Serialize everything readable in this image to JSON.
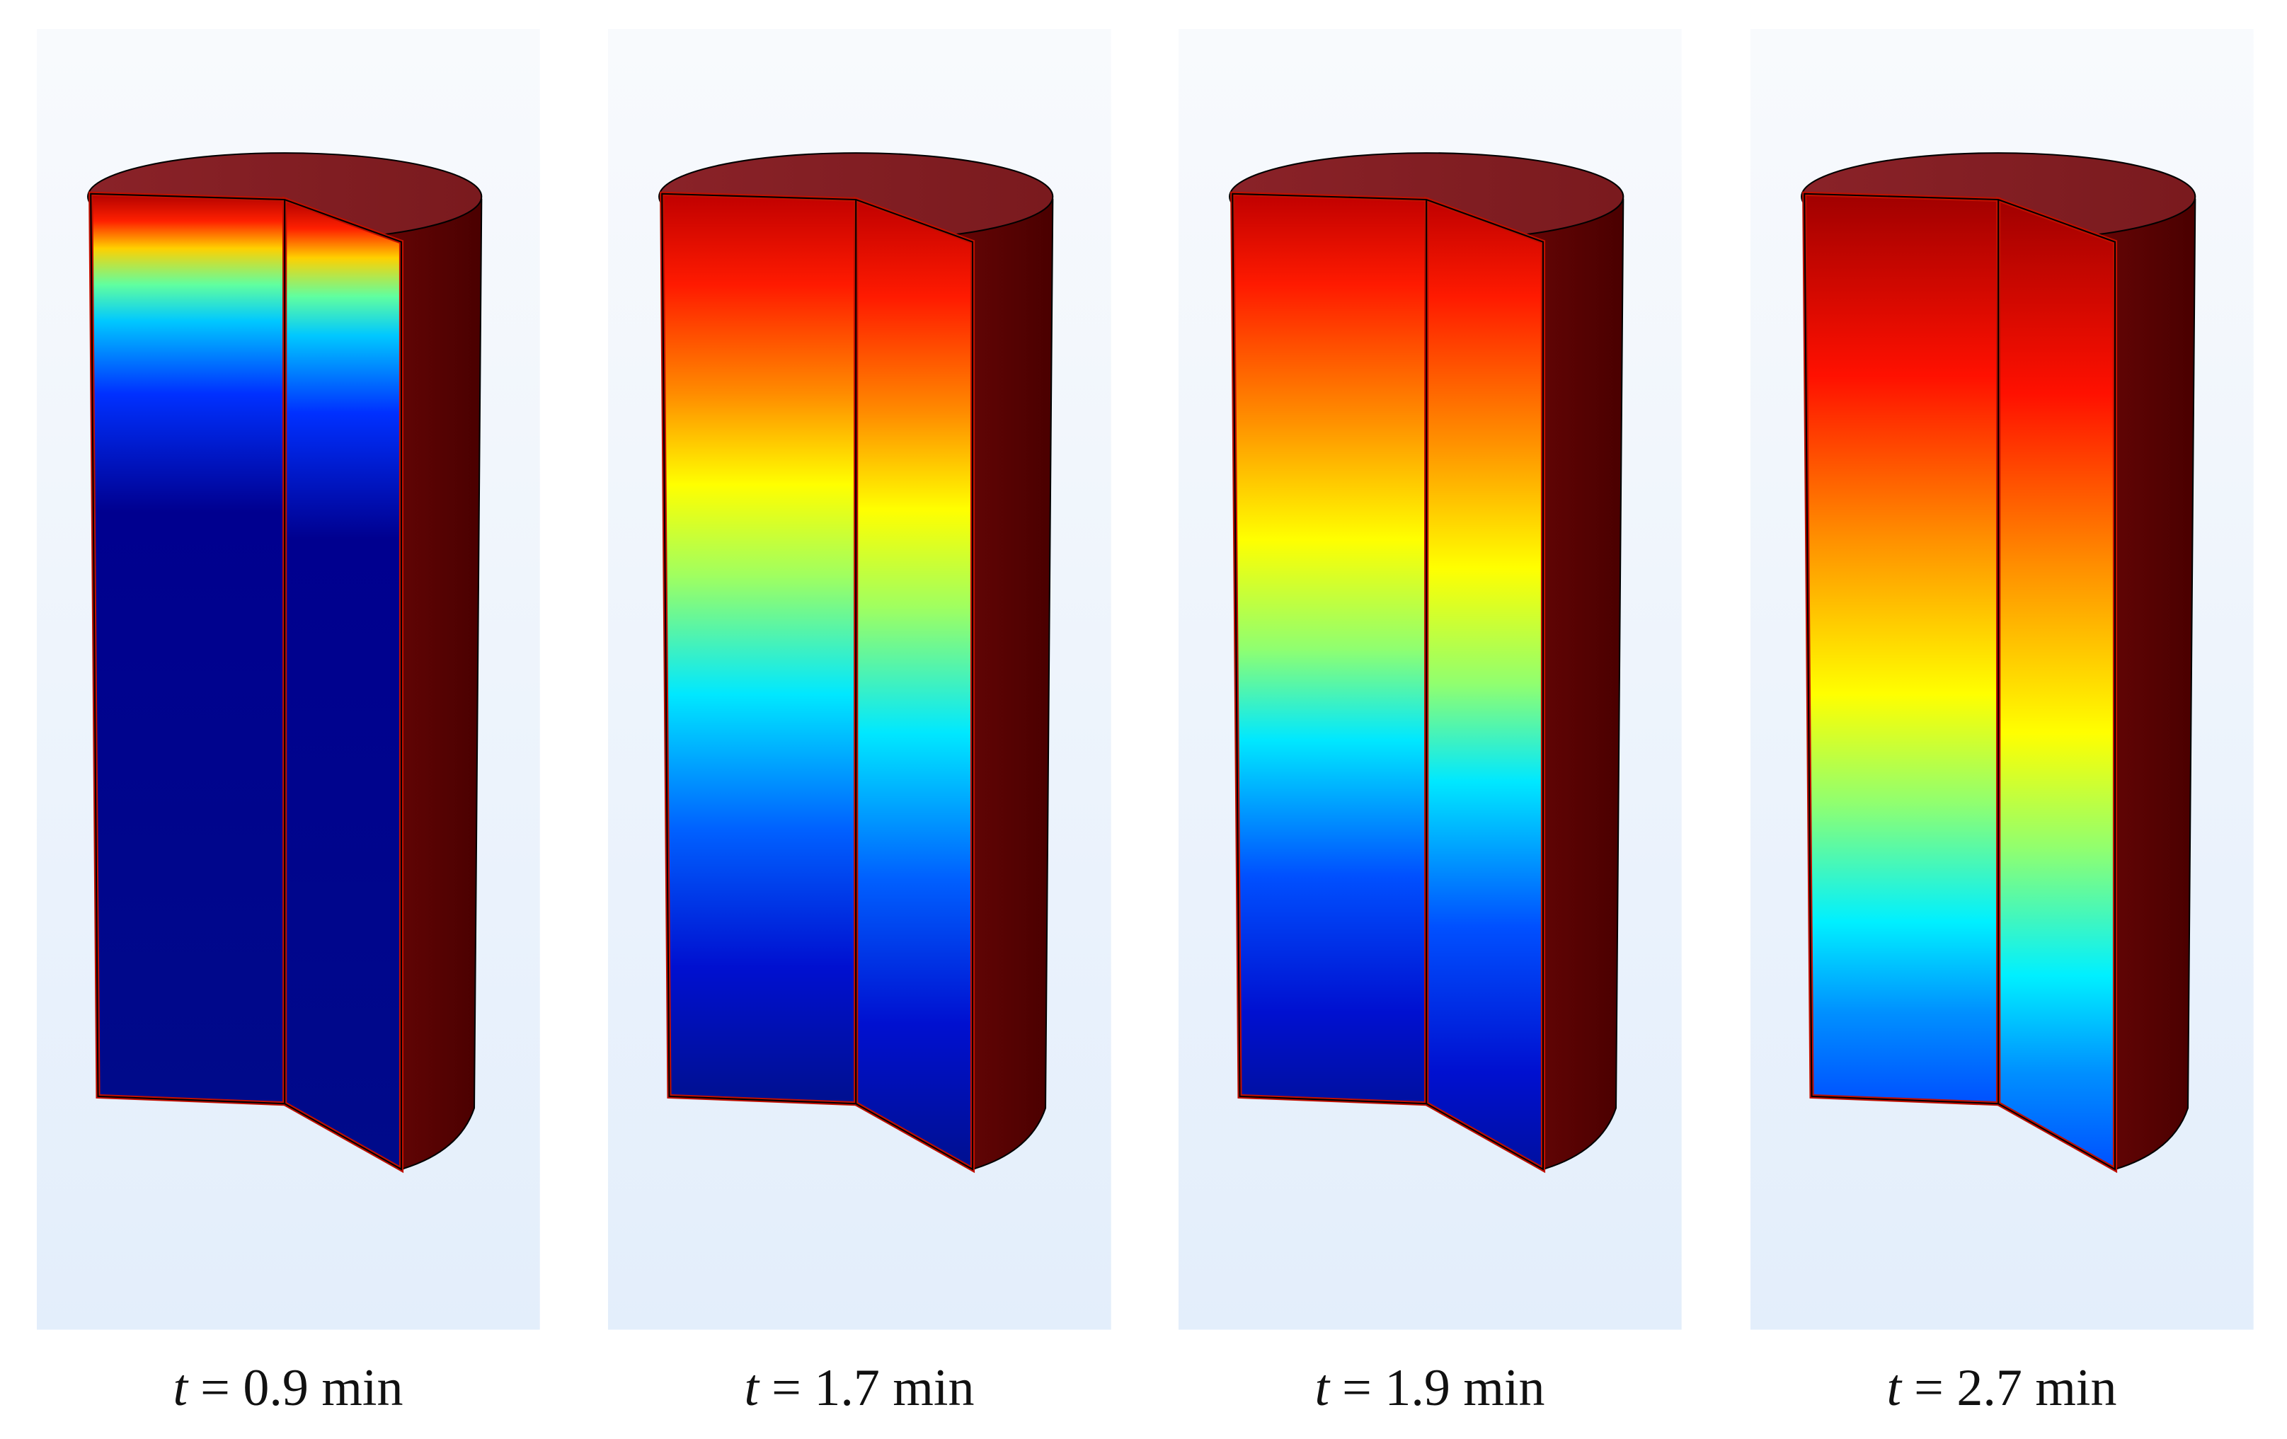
{
  "panels": [
    {
      "caption": {
        "symbol": "t",
        "text": "= 0.9 min"
      }
    },
    {
      "caption": {
        "symbol": "t",
        "text": "= 1.7 min"
      }
    },
    {
      "caption": {
        "symbol": "t",
        "text": "= 1.9 min"
      }
    },
    {
      "caption": {
        "symbol": "t",
        "text": "= 2.7 min"
      }
    }
  ]
}
